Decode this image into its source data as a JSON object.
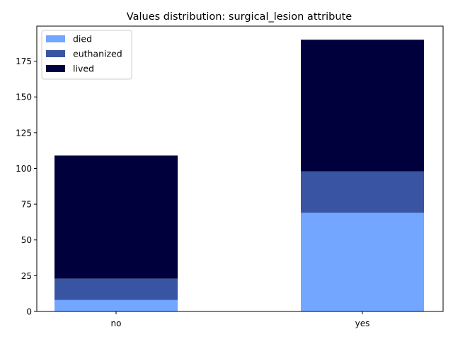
{
  "chart_data": {
    "type": "bar",
    "stacked": true,
    "title": "Values distribution: surgical_lesion attribute",
    "xlabel": "",
    "ylabel": "",
    "categories": [
      "no",
      "yes"
    ],
    "series": [
      {
        "name": "died",
        "values": [
          8,
          69
        ],
        "color": "#72a6ff"
      },
      {
        "name": "euthanized",
        "values": [
          15,
          29
        ],
        "color": "#3a54a4"
      },
      {
        "name": "lived",
        "values": [
          86,
          92
        ],
        "color": "#00003c"
      }
    ],
    "ylim": [
      0,
      199.5
    ],
    "yticks": [
      0,
      25,
      50,
      75,
      100,
      125,
      150,
      175
    ],
    "grid": false,
    "legend_position": "top-left"
  }
}
